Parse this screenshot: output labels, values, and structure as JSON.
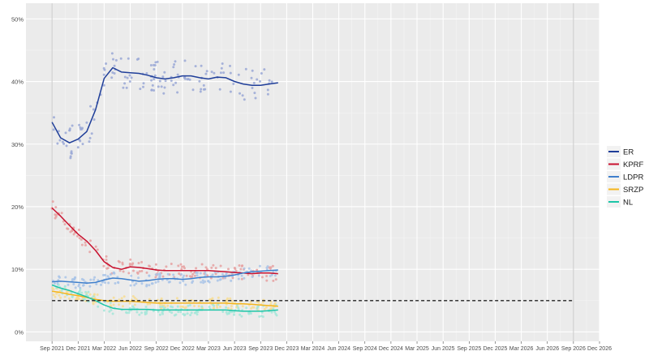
{
  "chart_data": {
    "type": "line",
    "y_tick_labels": [
      "0%",
      "10%",
      "20%",
      "30%",
      "40%",
      "50%"
    ],
    "y_ticks": [
      0,
      10,
      20,
      30,
      40,
      50
    ],
    "ylim": [
      -1.5,
      52.5
    ],
    "x_tick_labels": [
      "Sep 2021",
      "Dec 2021",
      "Mar 2022",
      "Jun 2022",
      "Sep 2022",
      "Dec 2022",
      "Mar 2023",
      "Jun 2023",
      "Sep 2023",
      "Dec 2023",
      "Mar 2024",
      "Jun 2024",
      "Sep 2024",
      "Dec 2024",
      "Mar 2025",
      "Jun 2025",
      "Sep 2025",
      "Dec 2025",
      "Mar 2026",
      "Jun 2026",
      "Sep 2026",
      "Dec 2026"
    ],
    "xlim_index": [
      -1,
      21
    ],
    "vertical_lines_at_index": [
      0,
      20
    ],
    "threshold": 5,
    "grid": true,
    "legend_position": "right",
    "series": [
      {
        "name": "ER",
        "color": "#1f3e99",
        "point_color": "#9aa8d6",
        "trend_x": [
          0,
          0.33,
          0.67,
          1.0,
          1.33,
          1.67,
          2.0,
          2.33,
          2.67,
          3.0,
          3.33,
          3.67,
          4.0,
          4.33,
          4.67,
          5.0,
          5.33,
          5.67,
          6.0,
          6.33,
          6.67,
          7.0,
          7.33,
          7.67,
          8.0,
          8.33,
          8.67
        ],
        "trend_y": [
          33.5,
          31.0,
          30.2,
          30.8,
          32.0,
          35.5,
          40.5,
          42.2,
          41.5,
          41.4,
          41.3,
          41.0,
          40.6,
          40.4,
          40.6,
          40.9,
          40.9,
          40.6,
          40.4,
          40.7,
          40.6,
          40.0,
          39.6,
          39.4,
          39.4,
          39.6,
          39.8
        ],
        "band": [
          26,
          47
        ]
      },
      {
        "name": "KPRF",
        "color": "#c8102e",
        "point_color": "#e6a1a1",
        "trend_x": [
          0,
          0.33,
          0.67,
          1.0,
          1.33,
          1.67,
          2.0,
          2.33,
          2.67,
          3.0,
          3.33,
          3.67,
          4.0,
          4.33,
          4.67,
          5.0,
          5.33,
          5.67,
          6.0,
          6.33,
          6.67,
          7.0,
          7.33,
          7.67,
          8.0,
          8.33,
          8.67
        ],
        "trend_y": [
          19.8,
          18.5,
          17.0,
          15.6,
          14.5,
          13.0,
          11.2,
          10.3,
          10.0,
          10.4,
          10.3,
          10.1,
          9.9,
          9.8,
          9.8,
          9.8,
          9.8,
          9.8,
          9.8,
          9.7,
          9.6,
          9.5,
          9.4,
          9.3,
          9.4,
          9.4,
          9.3
        ],
        "band": [
          8,
          23
        ]
      },
      {
        "name": "LDPR",
        "color": "#3f7fcc",
        "point_color": "#a9c4e8",
        "trend_x": [
          0,
          0.33,
          0.67,
          1.0,
          1.33,
          1.67,
          2.0,
          2.33,
          2.67,
          3.0,
          3.33,
          3.67,
          4.0,
          4.33,
          4.67,
          5.0,
          5.33,
          5.67,
          6.0,
          6.33,
          6.67,
          7.0,
          7.33,
          7.67,
          8.0,
          8.33,
          8.67
        ],
        "trend_y": [
          8.0,
          8.1,
          8.0,
          7.9,
          7.8,
          7.9,
          8.3,
          8.6,
          8.5,
          8.3,
          8.1,
          8.2,
          8.4,
          8.5,
          8.5,
          8.4,
          8.5,
          8.7,
          8.8,
          8.8,
          8.9,
          9.1,
          9.4,
          9.6,
          9.7,
          9.8,
          9.9
        ],
        "band": [
          7,
          12
        ]
      },
      {
        "name": "SRZP",
        "color": "#f5b51b",
        "point_color": "#f7dd94",
        "trend_x": [
          0,
          0.33,
          0.67,
          1.0,
          1.33,
          1.67,
          2.0,
          2.33,
          2.67,
          3.0,
          3.33,
          3.67,
          4.0,
          4.33,
          4.67,
          5.0,
          5.33,
          5.67,
          6.0,
          6.33,
          6.67,
          7.0,
          7.33,
          7.67,
          8.0,
          8.33,
          8.67
        ],
        "trend_y": [
          6.5,
          6.3,
          6.0,
          5.8,
          5.5,
          5.2,
          5.0,
          4.9,
          4.9,
          4.9,
          4.8,
          4.7,
          4.6,
          4.6,
          4.6,
          4.6,
          4.6,
          4.6,
          4.6,
          4.6,
          4.6,
          4.5,
          4.5,
          4.4,
          4.3,
          4.2,
          4.1
        ],
        "band": [
          2,
          7
        ]
      },
      {
        "name": "NL",
        "color": "#1cc5a8",
        "point_color": "#a4e6d9",
        "trend_x": [
          0,
          0.33,
          0.67,
          1.0,
          1.33,
          1.67,
          2.0,
          2.33,
          2.67,
          3.0,
          3.33,
          3.67,
          4.0,
          4.33,
          4.67,
          5.0,
          5.33,
          5.67,
          6.0,
          6.33,
          6.67,
          7.0,
          7.33,
          7.67,
          8.0,
          8.33,
          8.67
        ],
        "trend_y": [
          7.5,
          7.0,
          6.6,
          6.1,
          5.6,
          5.0,
          4.3,
          3.8,
          3.6,
          3.6,
          3.6,
          3.6,
          3.5,
          3.5,
          3.5,
          3.5,
          3.5,
          3.5,
          3.5,
          3.5,
          3.5,
          3.4,
          3.3,
          3.3,
          3.3,
          3.4,
          3.5
        ],
        "band": [
          2,
          9
        ]
      }
    ]
  }
}
